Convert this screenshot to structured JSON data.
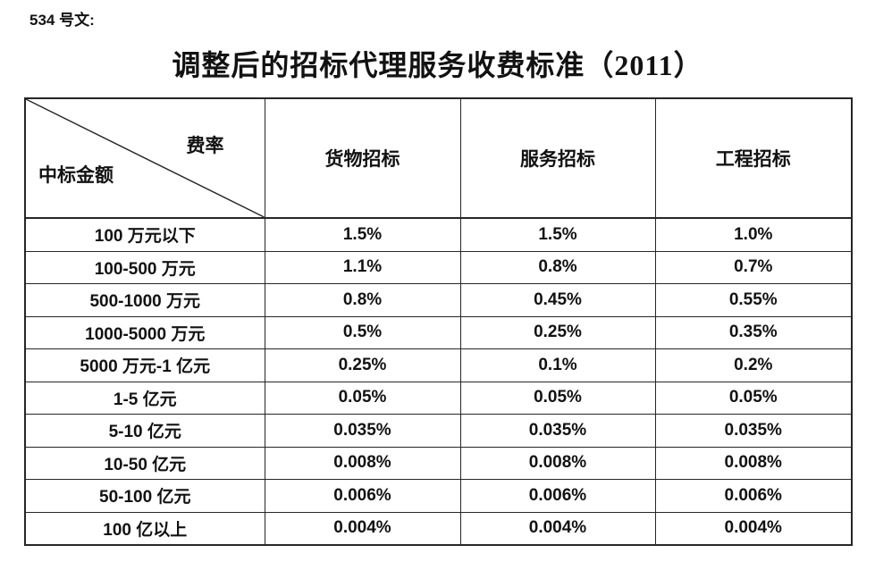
{
  "doc_label": "534 号文:",
  "title": "调整后的招标代理服务收费标准（2011）",
  "table": {
    "corner_top_right": "费率",
    "corner_bottom_left": "中标金额",
    "columns": [
      "货物招标",
      "服务招标",
      "工程招标"
    ],
    "rows": [
      {
        "label": "100 万元以下",
        "values": [
          "1.5%",
          "1.5%",
          "1.0%"
        ]
      },
      {
        "label": "100-500 万元",
        "values": [
          "1.1%",
          "0.8%",
          "0.7%"
        ]
      },
      {
        "label": "500-1000 万元",
        "values": [
          "0.8%",
          "0.45%",
          "0.55%"
        ]
      },
      {
        "label": "1000-5000 万元",
        "values": [
          "0.5%",
          "0.25%",
          "0.35%"
        ]
      },
      {
        "label": "5000 万元-1 亿元",
        "values": [
          "0.25%",
          "0.1%",
          "0.2%"
        ]
      },
      {
        "label": "1-5 亿元",
        "values": [
          "0.05%",
          "0.05%",
          "0.05%"
        ]
      },
      {
        "label": "5-10 亿元",
        "values": [
          "0.035%",
          "0.035%",
          "0.035%"
        ]
      },
      {
        "label": "10-50 亿元",
        "values": [
          "0.008%",
          "0.008%",
          "0.008%"
        ]
      },
      {
        "label": "50-100 亿元",
        "values": [
          "0.006%",
          "0.006%",
          "0.006%"
        ]
      },
      {
        "label": "100 亿以上",
        "values": [
          "0.004%",
          "0.004%",
          "0.004%"
        ]
      }
    ]
  },
  "colors": {
    "text": "#121212",
    "border": "#262626",
    "background": "#ffffff"
  }
}
